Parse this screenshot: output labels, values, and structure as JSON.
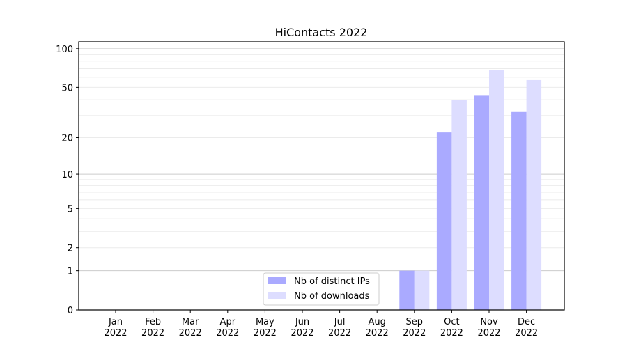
{
  "chart_data": {
    "type": "bar",
    "title": "HiContacts 2022",
    "xlabel": "",
    "ylabel": "",
    "yscale": "log(1+y)",
    "ylim": [
      0,
      113
    ],
    "yticks": [
      0,
      1,
      2,
      5,
      10,
      20,
      50,
      100
    ],
    "grid": true,
    "legend_position": "lower-center",
    "categories": [
      "Jan\n2022",
      "Feb\n2022",
      "Mar\n2022",
      "Apr\n2022",
      "May\n2022",
      "Jun\n2022",
      "Jul\n2022",
      "Aug\n2022",
      "Sep\n2022",
      "Oct\n2022",
      "Nov\n2022",
      "Dec\n2022"
    ],
    "series": [
      {
        "name": "Nb of distinct IPs",
        "color": "#aaaaff",
        "values": [
          0,
          0,
          0,
          0,
          0,
          0,
          0,
          0,
          1,
          22,
          43,
          32
        ]
      },
      {
        "name": "Nb of downloads",
        "color": "#ddddff",
        "values": [
          0,
          0,
          0,
          0,
          0,
          0,
          0,
          0,
          1,
          40,
          68,
          57
        ]
      }
    ]
  }
}
